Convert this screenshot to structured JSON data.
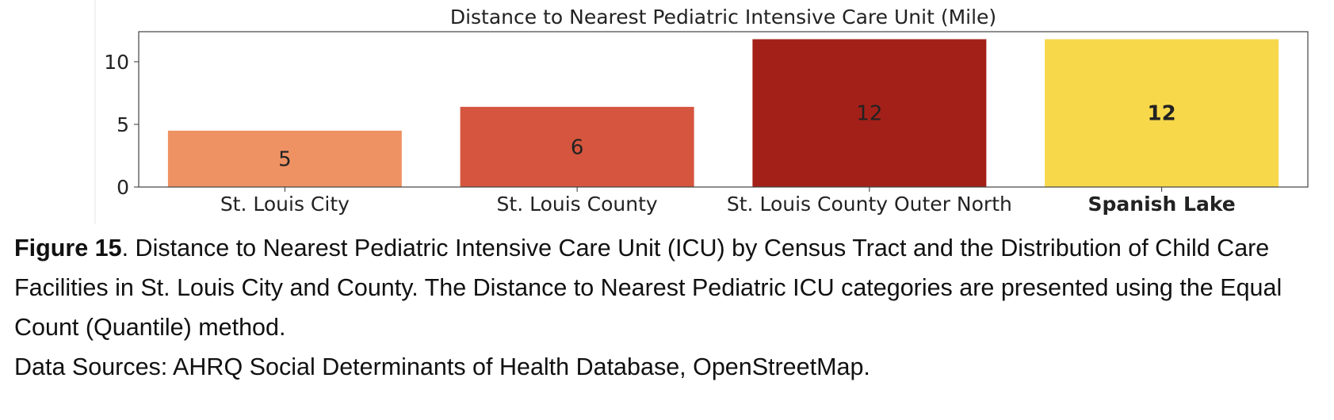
{
  "chart_data": {
    "type": "bar",
    "title": "Distance to Nearest Pediatric Intensive Care Unit (Mile)",
    "categories": [
      "St. Louis City",
      "St. Louis County",
      "St. Louis County Outer North",
      "Spanish Lake"
    ],
    "values": [
      4.5,
      6.4,
      11.8,
      11.8
    ],
    "data_labels": [
      "5",
      "6",
      "12",
      "12"
    ],
    "colors": [
      "#EE9264",
      "#D5553E",
      "#A32018",
      "#F7D84A"
    ],
    "highlighted_category": "Spanish Lake",
    "yticks": [
      "0",
      "5",
      "10"
    ],
    "ylim": [
      0,
      12.4
    ],
    "xlabel": "",
    "ylabel": "",
    "grid": false,
    "legend": "none"
  },
  "caption": {
    "figure_label": "Figure 15",
    "text": ". Distance to Nearest Pediatric Intensive Care Unit (ICU) by Census Tract and the Distribution of Child Care Facilities in St. Louis City and County. The Distance to Nearest Pediatric ICU categories are presented using the Equal Count (Quantile) method.",
    "sources": "Data Sources: AHRQ Social Determinants of Health Database, OpenStreetMap."
  }
}
